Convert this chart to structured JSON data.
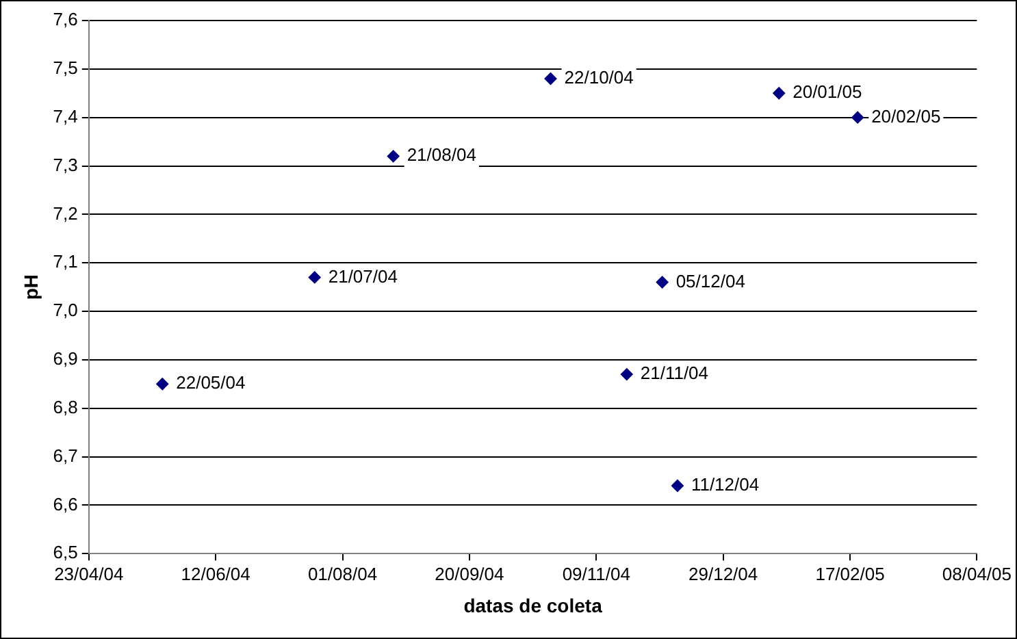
{
  "chart_data": {
    "type": "scatter",
    "xlabel": "datas de coleta",
    "ylabel": "pH",
    "x": [
      "2004-05-22",
      "2004-07-21",
      "2004-08-21",
      "2004-10-22",
      "2004-11-21",
      "2004-12-05",
      "2004-12-11",
      "2005-01-20",
      "2005-02-20"
    ],
    "values": [
      6.85,
      7.07,
      7.32,
      7.48,
      6.87,
      7.06,
      6.64,
      7.45,
      7.4
    ],
    "color": "#000080",
    "marker": "diamond",
    "grid": "y",
    "xlim": [
      "2004-04-23",
      "2005-04-08"
    ],
    "xticks": [
      {
        "value": "2004-04-23",
        "label": "23/04/04"
      },
      {
        "value": "2004-06-12",
        "label": "12/06/04"
      },
      {
        "value": "2004-08-01",
        "label": "01/08/04"
      },
      {
        "value": "2004-09-20",
        "label": "20/09/04"
      },
      {
        "value": "2004-11-09",
        "label": "09/11/04"
      },
      {
        "value": "2004-12-29",
        "label": "29/12/04"
      },
      {
        "value": "2005-02-17",
        "label": "17/02/05"
      },
      {
        "value": "2005-04-08",
        "label": "08/04/05"
      }
    ],
    "ylim": [
      6.5,
      7.6
    ],
    "yticks": [
      {
        "value": 6.5,
        "label": "6,5"
      },
      {
        "value": 6.6,
        "label": "6,6"
      },
      {
        "value": 6.7,
        "label": "6,7"
      },
      {
        "value": 6.8,
        "label": "6,8"
      },
      {
        "value": 6.9,
        "label": "6,9"
      },
      {
        "value": 7.0,
        "label": "7,0"
      },
      {
        "value": 7.1,
        "label": "7,1"
      },
      {
        "value": 7.2,
        "label": "7,2"
      },
      {
        "value": 7.3,
        "label": "7,3"
      },
      {
        "value": 7.4,
        "label": "7,4"
      },
      {
        "value": 7.5,
        "label": "7,5"
      },
      {
        "value": 7.6,
        "label": "7,6"
      }
    ],
    "annotations": [
      {
        "text": "22/05/04",
        "x": "2004-05-22",
        "y": 6.85
      },
      {
        "text": "21/07/04",
        "x": "2004-07-21",
        "y": 7.07
      },
      {
        "text": "21/08/04",
        "x": "2004-08-21",
        "y": 7.32
      },
      {
        "text": "22/10/04",
        "x": "2004-10-22",
        "y": 7.48
      },
      {
        "text": "21/11/04",
        "x": "2004-11-21",
        "y": 6.87
      },
      {
        "text": "05/12/04",
        "x": "2004-12-05",
        "y": 7.06
      },
      {
        "text": "11/12/04",
        "x": "2004-12-11",
        "y": 6.64
      },
      {
        "text": "20/01/05",
        "x": "2005-01-20",
        "y": 7.45
      },
      {
        "text": "20/02/05",
        "x": "2005-02-20",
        "y": 7.4
      }
    ],
    "legend": false
  }
}
